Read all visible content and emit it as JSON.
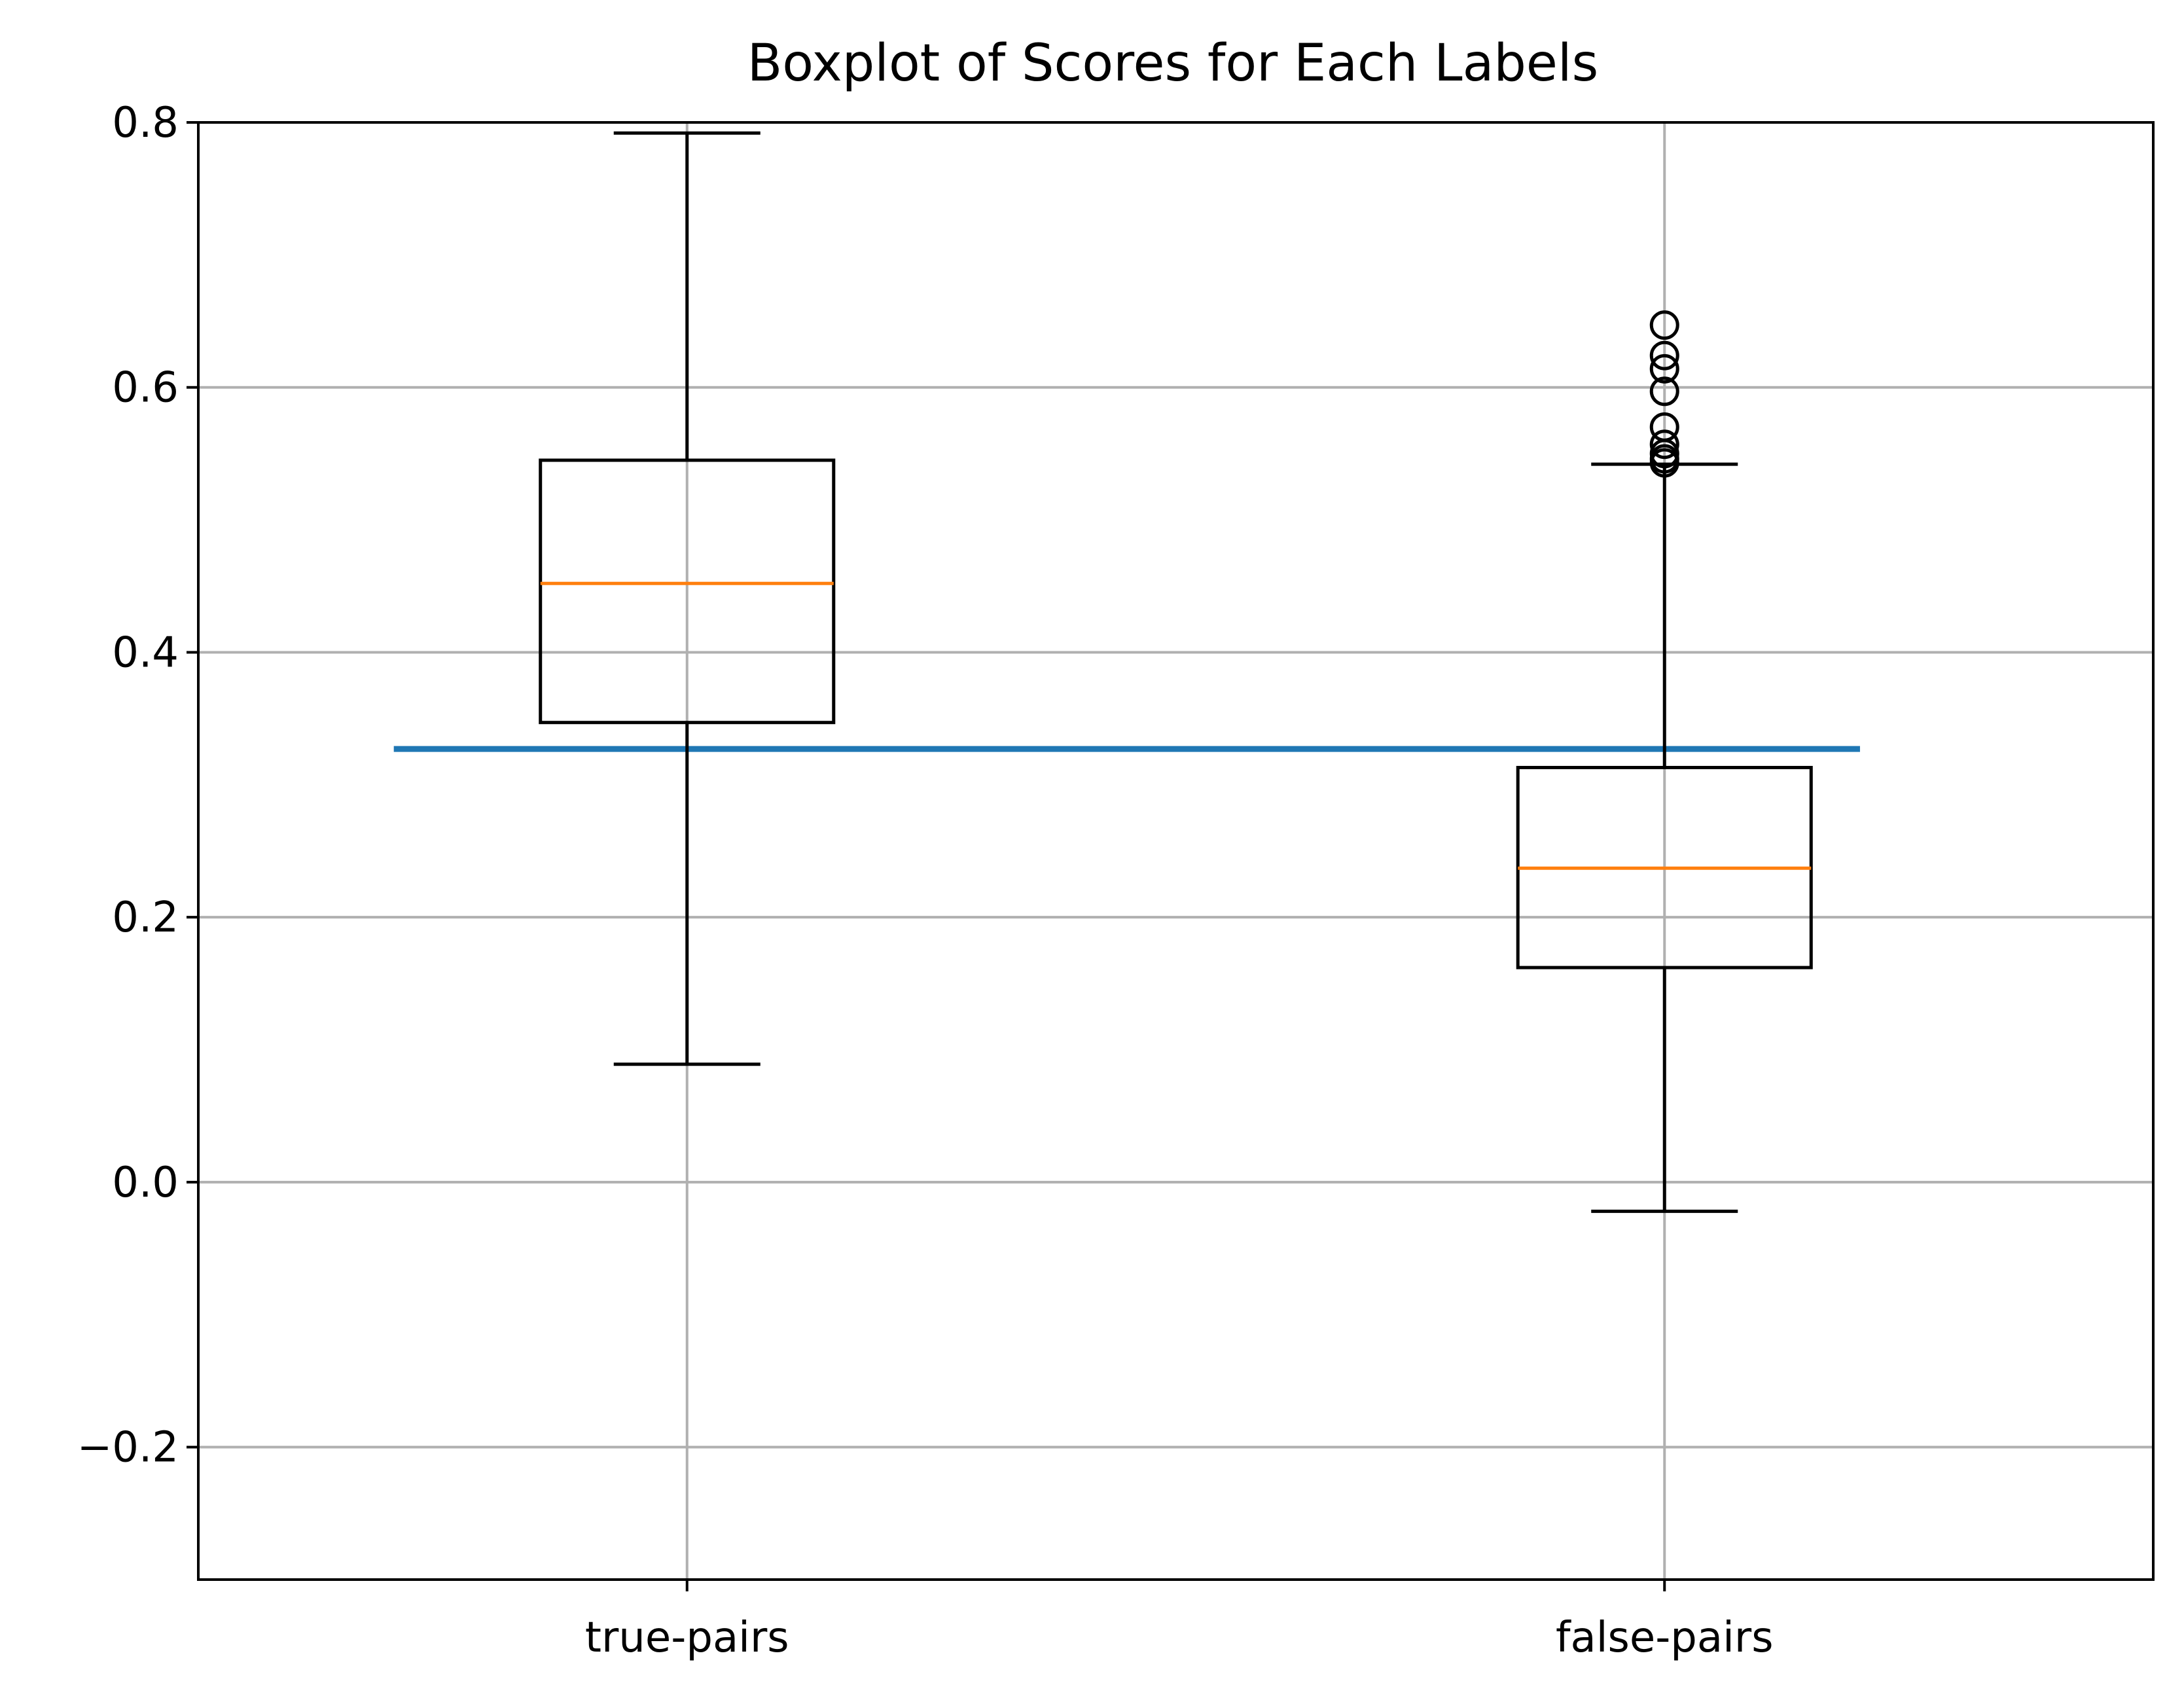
{
  "chart_data": {
    "type": "box",
    "title": "Boxplot of Scores for Each Labels",
    "xlabel": "",
    "ylabel": "",
    "ylim": [
      -0.3,
      0.8
    ],
    "yticks": [
      -0.2,
      0.0,
      0.2,
      0.4,
      0.6,
      0.8
    ],
    "ytick_labels": [
      "−0.2",
      "0.0",
      "0.2",
      "0.4",
      "0.6",
      "0.8"
    ],
    "grid": true,
    "categories": [
      "true-pairs",
      "false-pairs"
    ],
    "boxes": [
      {
        "label": "true-pairs",
        "whisker_low": 0.089,
        "q1": 0.347,
        "median": 0.452,
        "q3": 0.545,
        "whisker_high": 0.792,
        "outliers": []
      },
      {
        "label": "false-pairs",
        "whisker_low": -0.022,
        "q1": 0.162,
        "median": 0.237,
        "q3": 0.313,
        "whisker_high": 0.542,
        "outliers": [
          0.647,
          0.624,
          0.614,
          0.597,
          0.57,
          0.557,
          0.55,
          0.546,
          0.543
        ]
      }
    ],
    "reference_line": {
      "y": 0.327,
      "x_start": 0.7,
      "x_end": 2.2
    },
    "colors": {
      "box": "#000000",
      "median": "#ff7f0e",
      "reference_line": "#1f77b4",
      "grid": "#b0b0b0"
    }
  }
}
